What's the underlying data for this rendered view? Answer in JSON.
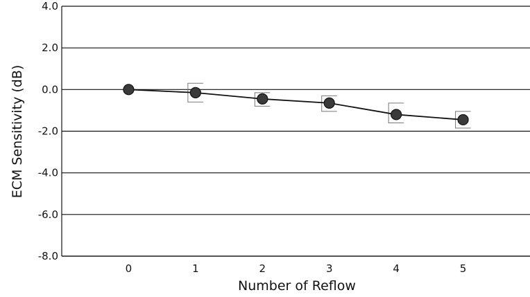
{
  "chart_data": {
    "type": "line",
    "title": "",
    "xlabel": "Number of Reflow",
    "ylabel": "ECM Sensitivity (dB)",
    "x": [
      0,
      1,
      2,
      3,
      4,
      5
    ],
    "x_tick_labels": [
      "0",
      "1",
      "2",
      "3",
      "4",
      "5"
    ],
    "xlim": [
      -1,
      6
    ],
    "ylim": [
      -8.0,
      4.0
    ],
    "y_ticks": [
      4.0,
      2.0,
      0.0,
      -2.0,
      -4.0,
      -6.0,
      -8.0
    ],
    "y_tick_labels": [
      "4.0",
      "2.0",
      "0.0",
      "-2.0",
      "-4.0",
      "-6.0",
      "-8.0"
    ],
    "series": [
      {
        "values": [
          0.0,
          -0.15,
          -0.45,
          -0.65,
          -1.2,
          -1.45
        ],
        "err_upper": [
          0.0,
          0.3,
          -0.15,
          -0.3,
          -0.65,
          -1.05
        ],
        "err_lower": [
          0.0,
          -0.6,
          -0.8,
          -1.05,
          -1.6,
          -1.85
        ]
      }
    ],
    "grid": "horizontal",
    "legend": "none",
    "colors": {
      "line": "#111111",
      "marker": "#3a3a3a",
      "gridline": "#111111",
      "errorbar": "#777777"
    }
  }
}
